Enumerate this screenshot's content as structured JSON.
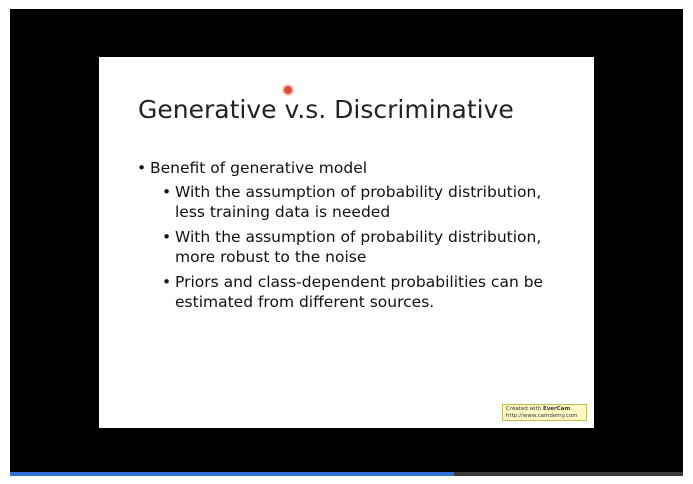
{
  "slide": {
    "title": "Generative v.s. Discriminative",
    "bullets": [
      {
        "text": "Benefit of generative model",
        "children": [
          "With the assumption of probability distribution, less training data is needed",
          "With the assumption of probability distribution, more robust to the noise",
          "Priors and class-dependent probabilities can be estimated from different sources."
        ]
      }
    ]
  },
  "bullet_glyph": "•",
  "watermark": {
    "line1_prefix": "Created with ",
    "brand": "EverCam",
    "line1_suffix": ".",
    "line2": "http://www.camdemy.com"
  },
  "player": {
    "progress_fraction": 0.66,
    "progress_color": "#2f6fd6"
  },
  "colors": {
    "background": "#000000",
    "slide": "#ffffff",
    "cursor": "#e04a3a"
  }
}
